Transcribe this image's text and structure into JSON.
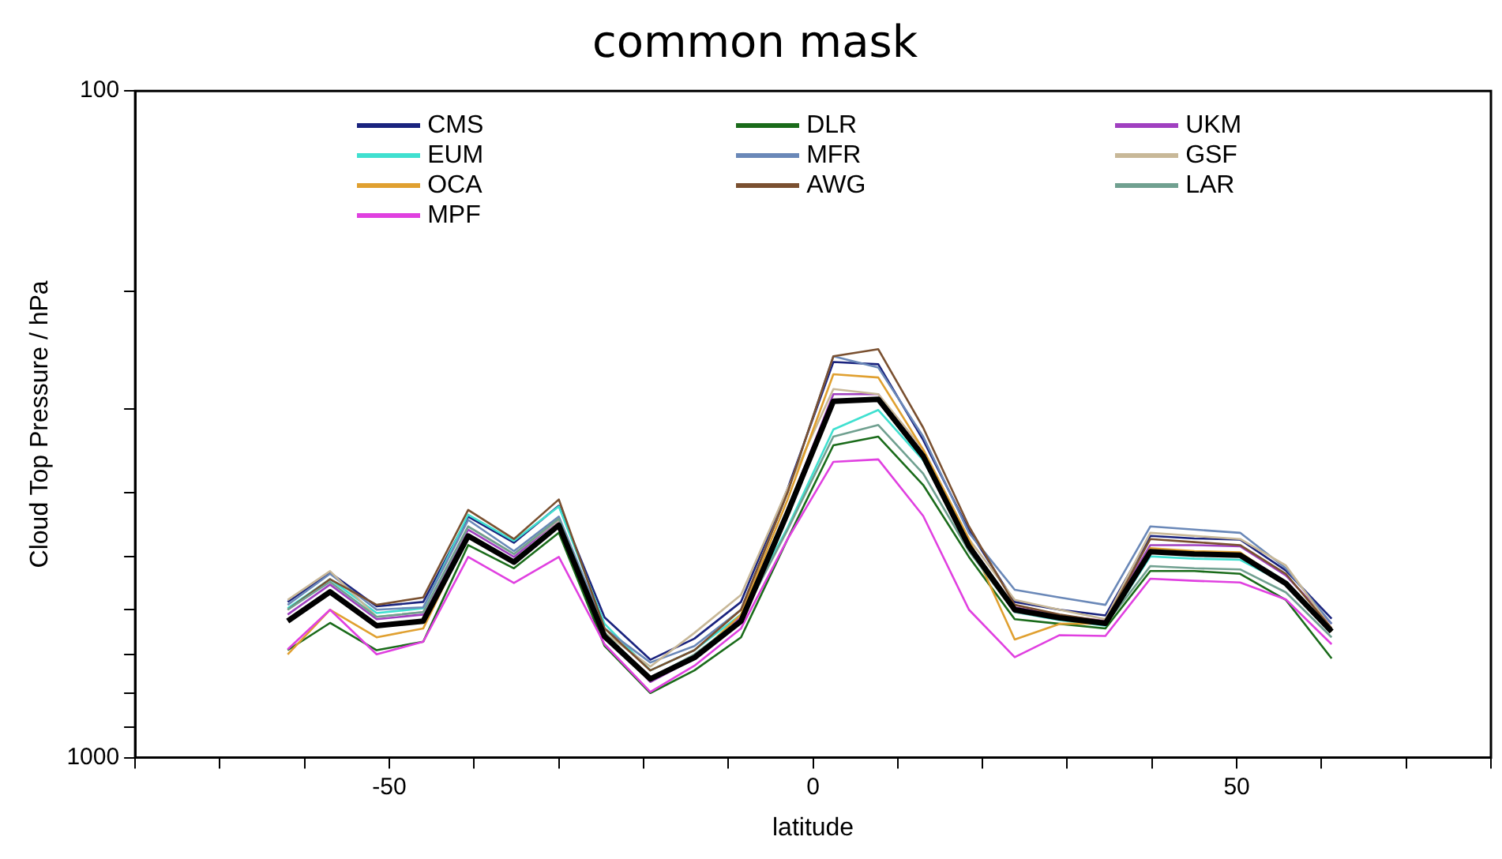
{
  "chart_data": {
    "type": "line",
    "title": "common mask",
    "xlabel": "latitude",
    "ylabel": "Cloud Top Pressure / hPa",
    "x": [
      -62,
      -57,
      -51.5,
      -46,
      -40.7,
      -35.3,
      -30,
      -24.6,
      -19.2,
      -14,
      -8.5,
      -3,
      2.4,
      7.7,
      13,
      18.4,
      23.8,
      29.1,
      34.5,
      39.8,
      45,
      50.4,
      55.8,
      61.2
    ],
    "xlim": [
      -80,
      80
    ],
    "xticks": [
      {
        "value": -80,
        "label": null
      },
      {
        "value": -70,
        "label": null
      },
      {
        "value": -60,
        "label": null
      },
      -50,
      {
        "value": -40,
        "label": null
      },
      {
        "value": -30,
        "label": null
      },
      {
        "value": -20,
        "label": null
      },
      {
        "value": -10,
        "label": null
      },
      0,
      {
        "value": 10,
        "label": null
      },
      {
        "value": 20,
        "label": null
      },
      {
        "value": 30,
        "label": null
      },
      {
        "value": 40,
        "label": null
      },
      50,
      {
        "value": 60,
        "label": null
      },
      {
        "value": 70,
        "label": null
      },
      {
        "value": 80,
        "label": null
      }
    ],
    "ylim": [
      1000,
      100
    ],
    "yticks": [
      100,
      {
        "value": 200,
        "label": null
      },
      {
        "value": 300,
        "label": null
      },
      {
        "value": 400,
        "label": null
      },
      {
        "value": 500,
        "label": null
      },
      {
        "value": 600,
        "label": null
      },
      {
        "value": 700,
        "label": null
      },
      {
        "value": 800,
        "label": null
      },
      {
        "value": 900,
        "label": null
      },
      1000
    ],
    "log": "y",
    "grid": false,
    "legend": "top",
    "marker": "none",
    "line_style": "solid",
    "series": [
      {
        "name": "CMS",
        "color": "#1a237e",
        "values": [
          584,
          528,
          593,
          584,
          435,
          476,
          419,
          616,
          713,
          663,
          584,
          395,
          255,
          257,
          334,
          456,
          584,
          600,
          612,
          465,
          469,
          471,
          524,
          619
        ]
      },
      {
        "name": "DLR",
        "color": "#1a6b1a",
        "values": [
          690,
          628,
          690,
          670,
          480,
          520,
          460,
          680,
          800,
          740,
          660,
          470,
          340,
          330,
          390,
          500,
          620,
          630,
          640,
          525,
          525,
          530,
          580,
          710
        ]
      },
      {
        "name": "UKM",
        "color": "#a040c0",
        "values": [
          610,
          550,
          620,
          610,
          455,
          500,
          440,
          650,
          770,
          710,
          615,
          425,
          285,
          285,
          350,
          478,
          595,
          612,
          624,
          480,
          480,
          482,
          533,
          630
        ]
      },
      {
        "name": "EUM",
        "color": "#40e0d0",
        "values": [
          597,
          540,
          607,
          597,
          432,
          473,
          420,
          630,
          740,
          690,
          610,
          452,
          322,
          301,
          358,
          482,
          605,
          622,
          634,
          499,
          503,
          505,
          548,
          647
        ]
      },
      {
        "name": "MFR",
        "color": "#6a88b8",
        "values": [
          590,
          530,
          600,
          595,
          440,
          490,
          435,
          640,
          720,
          680,
          600,
          400,
          250,
          260,
          330,
          460,
          560,
          575,
          590,
          450,
          455,
          460,
          520,
          630
        ]
      },
      {
        "name": "GSF",
        "color": "#c8b898",
        "values": [
          580,
          525,
          615,
          605,
          450,
          495,
          440,
          650,
          730,
          650,
          570,
          395,
          280,
          285,
          345,
          470,
          580,
          600,
          620,
          460,
          465,
          470,
          515,
          640
        ]
      },
      {
        "name": "OCA",
        "color": "#e0a030",
        "values": [
          700,
          600,
          660,
          640,
          465,
          509,
          448,
          658,
          762,
          708,
          610,
          410,
          266,
          269,
          345,
          470,
          665,
          630,
          629,
          485,
          490,
          492,
          548,
          647
        ]
      },
      {
        "name": "AWG",
        "color": "#7a5030",
        "values": [
          600,
          540,
          590,
          575,
          425,
          470,
          410,
          640,
          740,
          690,
          600,
          400,
          250,
          244,
          320,
          450,
          590,
          610,
          625,
          470,
          475,
          480,
          530,
          640
        ]
      },
      {
        "name": "LAR",
        "color": "#70a090",
        "values": [
          600,
          545,
          615,
          605,
          450,
          495,
          438,
          650,
          760,
          700,
          620,
          455,
          330,
          317,
          375,
          490,
          605,
          620,
          632,
          516,
          520,
          522,
          565,
          660
        ]
      },
      {
        "name": "MPF",
        "color": "#e040e0",
        "values": [
          688,
          600,
          700,
          670,
          500,
          547,
          500,
          676,
          797,
          728,
          640,
          470,
          360,
          357,
          434,
          600,
          707,
          655,
          657,
          539,
          543,
          546,
          579,
          676
        ]
      },
      {
        "color": "#000000",
        "values": [
          624,
          564,
          634,
          624,
          465,
          509,
          448,
          658,
          762,
          708,
          624,
          429,
          292,
          290,
          353,
          482,
          600,
          617,
          629,
          491,
          495,
          497,
          548,
          647
        ]
      }
    ]
  }
}
